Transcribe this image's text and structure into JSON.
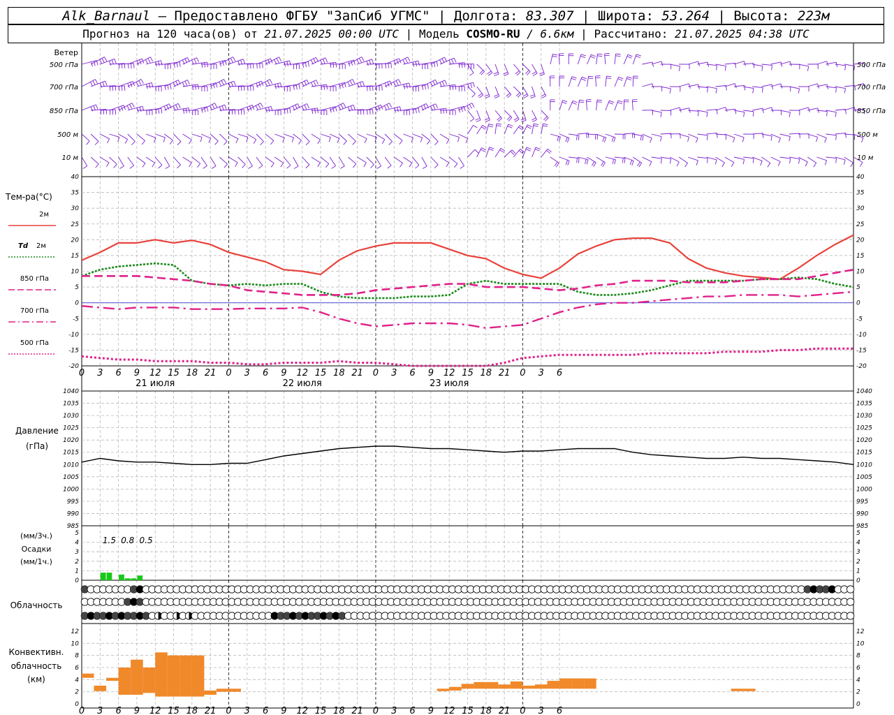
{
  "header": {
    "station": "Alk_Barnaul",
    "dash": " — ",
    "provided": "Предоставлено ФГБУ \"ЗапСиб УГМС\"",
    "lon_label": "Долгота:",
    "lon": "83.307",
    "lat_label": "Широта:",
    "lat": "53.264",
    "alt_label": "Высота:",
    "alt": "223м",
    "forecast_label": "Прогноз на 120 часа(ов) от",
    "start": "21.07.2025 00:00 UTC",
    "model_label": "Модель",
    "model": "COSMO-RU",
    "resolution": "/ 6.6км",
    "computed_label": "Рассчитано:",
    "computed": "21.07.2025 04:38 UTC"
  },
  "time_axis": {
    "hour_labels": [
      "0",
      "3",
      "6",
      "9",
      "12",
      "15",
      "18",
      "21",
      "0",
      "3",
      "6",
      "9",
      "12",
      "15",
      "18",
      "21",
      "0",
      "3",
      "6",
      "9",
      "12",
      "15",
      "18",
      "21",
      "0",
      "3",
      "6"
    ],
    "day_labels": [
      "21 июля",
      "22 июля",
      "23 июля"
    ]
  },
  "wind_panel": {
    "title": "Ветер",
    "levels": [
      "500 гПа",
      "700 гПа",
      "850 гПа",
      "500 м",
      "10 м"
    ],
    "color": "#7a1fd0"
  },
  "temperature_panel": {
    "title": "Тем-ра(°C)",
    "legend": [
      {
        "label": "2м",
        "color": "#e8423a",
        "style": "solid"
      },
      {
        "label": "Td",
        "label2": "2м",
        "color": "#1a8a1a",
        "style": "dotted"
      },
      {
        "label": "850 гПа",
        "color": "#e0218a",
        "style": "dashed"
      },
      {
        "label": "700 гПа",
        "color": "#e0218a",
        "style": "dashdot"
      },
      {
        "label": "500 гПа",
        "color": "#e0218a",
        "style": "dotted"
      }
    ],
    "y_ticks": [
      "40",
      "35",
      "30",
      "25",
      "20",
      "15",
      "10",
      "5",
      "0",
      "-5",
      "-10",
      "-15",
      "-20"
    ]
  },
  "pressure_panel": {
    "title": "Давление",
    "unit": "(гПа)",
    "y_ticks": [
      "1040",
      "1035",
      "1030",
      "1025",
      "1020",
      "1015",
      "1010",
      "1005",
      "1000",
      "995",
      "990",
      "985"
    ]
  },
  "precip_panel": {
    "unit_top": "(мм/3ч.)",
    "title": "Осадки",
    "unit_bottom": "(мм/1ч.)",
    "totals": [
      "1.5",
      "0.8",
      "0.5"
    ],
    "y_ticks": [
      "5",
      "4",
      "3",
      "2",
      "1",
      "0"
    ],
    "color": "#18c818"
  },
  "cloud_panel": {
    "title": "Облачность"
  },
  "convective_panel": {
    "title1": "Конвективн.",
    "title2": "облачность",
    "unit": "(км)",
    "y_ticks": [
      "12",
      "10",
      "8",
      "6",
      "4",
      "2",
      "0"
    ],
    "color": "#f0892a"
  },
  "chart_data": [
    {
      "type": "line",
      "title": "Тем-ра(°C)",
      "x_hours": [
        0,
        3,
        6,
        9,
        12,
        15,
        18,
        21,
        24,
        27,
        30,
        33,
        36,
        39,
        42,
        45,
        48,
        51,
        54,
        57,
        60,
        63,
        66,
        69,
        72,
        75,
        78,
        81,
        84,
        87,
        90,
        93,
        96,
        99,
        102,
        105,
        108,
        111,
        114,
        117,
        120,
        123,
        126
      ],
      "ylim": [
        -20,
        40
      ],
      "series": [
        {
          "name": "2м",
          "values": [
            13.5,
            16,
            19,
            19,
            20,
            19,
            19.8,
            18.5,
            16,
            14.5,
            13,
            10.5,
            10,
            9,
            13.5,
            16.5,
            18,
            19,
            19,
            19,
            17,
            15,
            14,
            11,
            9,
            7.8,
            11,
            15.5,
            18,
            20,
            20.5,
            20.5,
            19,
            14,
            11,
            9.5,
            8.5,
            8,
            7.5,
            11,
            15,
            18.5,
            21.5
          ]
        },
        {
          "name": "Td 2м",
          "values": [
            8.5,
            10.5,
            11.5,
            12,
            12.5,
            12,
            7,
            6,
            5.5,
            6,
            5.5,
            6,
            6,
            3.5,
            2,
            1.5,
            1.5,
            1.5,
            2,
            2,
            2.5,
            6,
            7,
            6,
            6,
            6,
            6,
            3.5,
            2.5,
            2.5,
            3,
            4,
            5.5,
            7,
            7,
            7,
            7,
            7.5,
            7.5,
            8,
            7.5,
            6,
            5
          ]
        },
        {
          "name": "850 гПа",
          "values": [
            8.5,
            8.5,
            8.5,
            8.5,
            8,
            7.5,
            7,
            6,
            5.5,
            4,
            3.5,
            3,
            2.5,
            2.5,
            2.5,
            3,
            4,
            4.5,
            5,
            5.5,
            6,
            6,
            5,
            5,
            5,
            4.5,
            4,
            4.5,
            5.5,
            6,
            7,
            7,
            7,
            6.5,
            6.5,
            6.5,
            7,
            7.5,
            7.5,
            7.5,
            8.5,
            9.5,
            10.5
          ]
        },
        {
          "name": "700 гПа",
          "values": [
            -1,
            -1.5,
            -2,
            -1.5,
            -1.5,
            -1.5,
            -2,
            -2,
            -2,
            -1.8,
            -1.8,
            -1.8,
            -1.5,
            -3,
            -5,
            -6.5,
            -7.5,
            -7,
            -6.5,
            -6.5,
            -6.5,
            -7,
            -8,
            -7.5,
            -7,
            -5,
            -3,
            -1.5,
            -0.5,
            0,
            0,
            0.5,
            1,
            1.5,
            2,
            2,
            2.5,
            2.5,
            2.5,
            2,
            2.5,
            3,
            3.5
          ]
        },
        {
          "name": "500 гПа",
          "values": [
            -17,
            -17.5,
            -18,
            -18,
            -18.5,
            -18.5,
            -18.5,
            -19,
            -19,
            -19.5,
            -19.5,
            -19,
            -19,
            -19,
            -18.5,
            -19,
            -19,
            -19.5,
            -20.5,
            -21,
            -21,
            -20.5,
            -20,
            -19,
            -17.5,
            -17,
            -16.5,
            -16.5,
            -16.5,
            -16.5,
            -16.5,
            -16,
            -16,
            -16,
            -16,
            -15.5,
            -15.5,
            -15.5,
            -15,
            -15,
            -14.5,
            -14.5,
            -14.5
          ]
        }
      ]
    },
    {
      "type": "line",
      "title": "Давление (гПа)",
      "x_hours": [
        0,
        3,
        6,
        9,
        12,
        15,
        18,
        21,
        24,
        27,
        30,
        33,
        36,
        39,
        42,
        45,
        48,
        51,
        54,
        57,
        60,
        63,
        66,
        69,
        72,
        75,
        78,
        81,
        84,
        87,
        90,
        93,
        96,
        99,
        102,
        105,
        108,
        111,
        114,
        117,
        120,
        123,
        126
      ],
      "ylim": [
        985,
        1040
      ],
      "series": [
        {
          "name": "Давление",
          "values": [
            1011,
            1012.5,
            1011.5,
            1011,
            1011,
            1010.5,
            1010,
            1010,
            1010.5,
            1010.5,
            1012,
            1013.5,
            1014.5,
            1015.5,
            1016.5,
            1017,
            1017.5,
            1017.5,
            1017,
            1016.5,
            1016.5,
            1016,
            1015.5,
            1015,
            1015.5,
            1015.5,
            1016,
            1016.5,
            1016.5,
            1016.5,
            1015,
            1014,
            1013.5,
            1013,
            1012.5,
            1012.5,
            1013,
            1012.5,
            1012.5,
            1012,
            1011.5,
            1011,
            1010
          ]
        }
      ]
    },
    {
      "type": "bar",
      "title": "Осадки",
      "x_hours": [
        3,
        4,
        6,
        7,
        8,
        9
      ],
      "ylim": [
        0,
        5
      ],
      "values": [
        0.8,
        0.8,
        0.6,
        0.2,
        0.2,
        0.5
      ]
    },
    {
      "type": "bar",
      "title": "Конвективн. облачность (км)",
      "ylim": [
        0,
        13
      ],
      "bars": [
        {
          "h": 0,
          "base": 5,
          "top": 4.3
        },
        {
          "h": 1,
          "base": 3,
          "top": 2.1
        },
        {
          "h": 2,
          "base": 4.3,
          "top": 3.8
        },
        {
          "h": 3,
          "base": 6,
          "top": 1.5
        },
        {
          "h": 4,
          "base": 7.3,
          "top": 1.5
        },
        {
          "h": 5,
          "base": 6,
          "top": 1.8
        },
        {
          "h": 6,
          "base": 8.5,
          "top": 1.2
        },
        {
          "h": 7,
          "base": 8,
          "top": 1.2
        },
        {
          "h": 8,
          "base": 8,
          "top": 1.2
        },
        {
          "h": 9,
          "base": 8,
          "top": 1.2
        },
        {
          "h": 10,
          "base": 2.2,
          "top": 1.5
        },
        {
          "h": 11,
          "base": 2.5,
          "top": 2
        },
        {
          "h": 12,
          "base": 2.5,
          "top": 2
        },
        {
          "h": 29,
          "base": 2.5,
          "top": 2.1
        },
        {
          "h": 30,
          "base": 2.8,
          "top": 2.2
        },
        {
          "h": 31,
          "base": 3.3,
          "top": 2.5
        },
        {
          "h": 32,
          "base": 3.6,
          "top": 2.5
        },
        {
          "h": 33,
          "base": 3.6,
          "top": 2.5
        },
        {
          "h": 34,
          "base": 3.2,
          "top": 2.5
        },
        {
          "h": 35,
          "base": 3.7,
          "top": 2.5
        },
        {
          "h": 36,
          "base": 3,
          "top": 2.5
        },
        {
          "h": 37,
          "base": 3.2,
          "top": 2.5
        },
        {
          "h": 38,
          "base": 3.8,
          "top": 2.5
        },
        {
          "h": 39,
          "base": 4.2,
          "top": 2.5
        },
        {
          "h": 40,
          "base": 4.2,
          "top": 2.5
        },
        {
          "h": 41,
          "base": 4.2,
          "top": 2.5
        },
        {
          "h": 53,
          "base": 2.5,
          "top": 2.1
        },
        {
          "h": 54,
          "base": 2.5,
          "top": 2.1
        }
      ]
    }
  ]
}
